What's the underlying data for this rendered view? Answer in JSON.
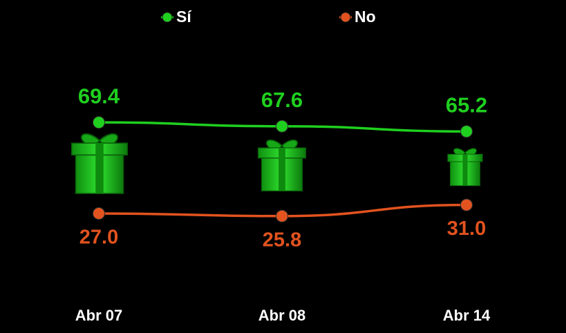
{
  "chart_data": {
    "type": "line",
    "categories": [
      "Abr 07",
      "Abr 08",
      "Abr 14"
    ],
    "series": [
      {
        "name": "Sí",
        "color": "#1fd01f",
        "values": [
          69.4,
          67.6,
          65.2
        ]
      },
      {
        "name": "No",
        "color": "#e2531f",
        "values": [
          27,
          25.8,
          31
        ],
        "value_labels": [
          "27.0",
          "25.8",
          "31.0"
        ]
      }
    ],
    "ylim": [
      0,
      100
    ]
  }
}
